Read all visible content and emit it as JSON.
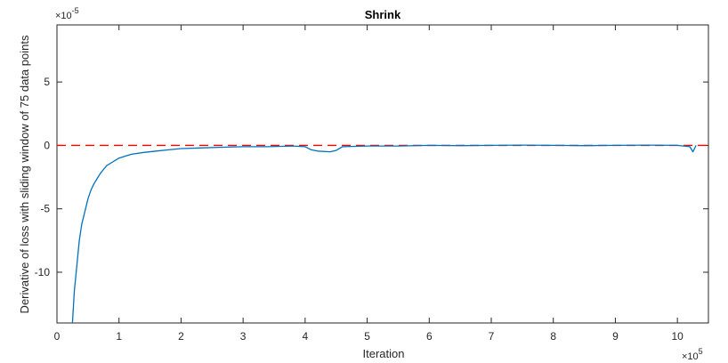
{
  "chart_data": {
    "type": "line",
    "title": "Shrink",
    "xlabel": "Iteration",
    "ylabel": "Derivative of loss with sliding window of 75 data points",
    "x_multiplier": "×10",
    "x_exponent": "5",
    "y_multiplier": "×10",
    "y_exponent": "-5",
    "xlim": [
      0,
      10.5
    ],
    "ylim": [
      -14,
      9.5
    ],
    "x_ticks": [
      {
        "value": 0,
        "label": "0"
      },
      {
        "value": 1,
        "label": "1"
      },
      {
        "value": 2,
        "label": "2"
      },
      {
        "value": 3,
        "label": "3"
      },
      {
        "value": 4,
        "label": "4"
      },
      {
        "value": 5,
        "label": "5"
      },
      {
        "value": 6,
        "label": "6"
      },
      {
        "value": 7,
        "label": "7"
      },
      {
        "value": 8,
        "label": "8"
      },
      {
        "value": 9,
        "label": "9"
      },
      {
        "value": 10,
        "label": "10"
      }
    ],
    "y_ticks": [
      {
        "value": 5,
        "label": "5"
      },
      {
        "value": 0,
        "label": "0"
      },
      {
        "value": -5,
        "label": "-5"
      },
      {
        "value": -10,
        "label": "-10"
      }
    ],
    "reference_line": {
      "y": 0,
      "style": "dashed",
      "color": "#ff0000"
    },
    "series": [
      {
        "color": "#0072bd",
        "x": [
          0.25,
          0.28,
          0.32,
          0.36,
          0.4,
          0.45,
          0.5,
          0.55,
          0.6,
          0.65,
          0.7,
          0.75,
          0.8,
          0.9,
          1.0,
          1.1,
          1.2,
          1.4,
          1.6,
          1.8,
          2.0,
          2.3,
          2.6,
          3.0,
          3.4,
          3.8,
          4.0,
          4.1,
          4.2,
          4.4,
          4.5,
          4.6,
          5.0,
          5.5,
          6.0,
          6.5,
          7.0,
          7.5,
          8.0,
          8.5,
          9.0,
          9.5,
          10.0,
          10.2,
          10.25,
          10.3
        ],
        "y": [
          -14,
          -11.5,
          -9.5,
          -7.5,
          -6.2,
          -5.2,
          -4.2,
          -3.5,
          -3.0,
          -2.6,
          -2.2,
          -1.9,
          -1.6,
          -1.3,
          -1.0,
          -0.85,
          -0.7,
          -0.55,
          -0.45,
          -0.35,
          -0.25,
          -0.2,
          -0.15,
          -0.1,
          -0.1,
          -0.05,
          -0.1,
          -0.35,
          -0.45,
          -0.5,
          -0.4,
          -0.1,
          -0.05,
          -0.05,
          0,
          -0.02,
          0,
          0.02,
          0,
          -0.02,
          0,
          0.02,
          0,
          -0.1,
          -0.5,
          0
        ]
      }
    ],
    "grid": false,
    "legend": "none"
  }
}
